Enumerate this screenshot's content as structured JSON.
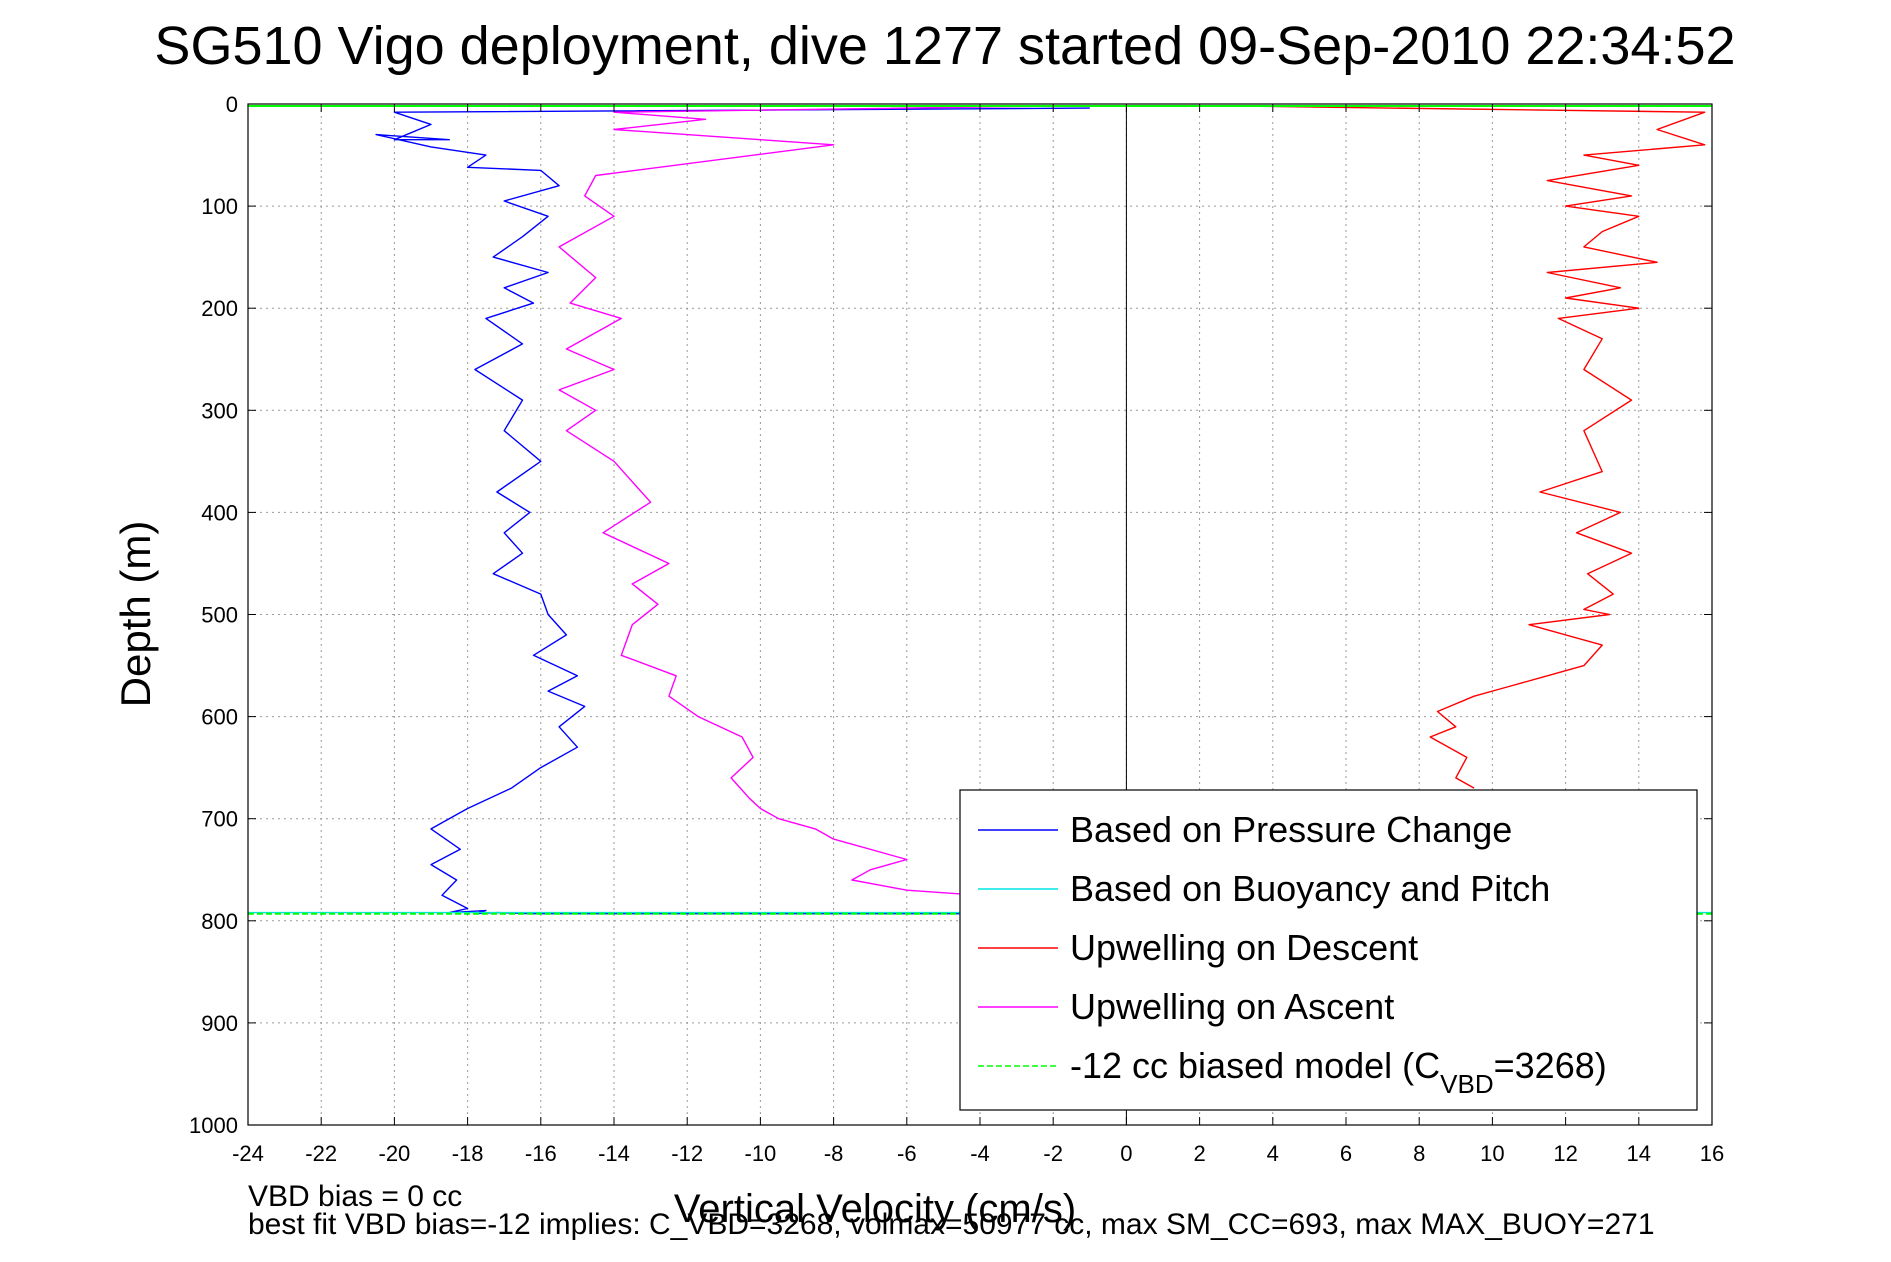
{
  "chart_data": {
    "type": "line",
    "title": "SG510 Vigo deployment, dive 1277 started 09-Sep-2010 22:34:52",
    "xlabel": "Vertical Velocity (cm/s)",
    "ylabel": "Depth (m)",
    "xlim": [
      -24,
      16
    ],
    "ylim": [
      0,
      1000
    ],
    "y_reversed": true,
    "grid": true,
    "legend_position": "lower-right",
    "x_ticks": [
      "-24",
      "-22",
      "-20",
      "-18",
      "-16",
      "-14",
      "-12",
      "-10",
      "-8",
      "-6",
      "-4",
      "-2",
      "0",
      "2",
      "4",
      "6",
      "8",
      "10",
      "12",
      "14",
      "16"
    ],
    "y_ticks": [
      "0",
      "100",
      "200",
      "300",
      "400",
      "500",
      "600",
      "700",
      "800",
      "900",
      "1000"
    ],
    "series": [
      {
        "name": "Based on Pressure Change",
        "color": "#0000ff",
        "x": [
          -1,
          -20,
          -19,
          -20,
          -18.5,
          -20.5,
          -19,
          -17.5,
          -18,
          -16,
          -15.5,
          -17,
          -15.8,
          -16.5,
          -17.3,
          -15.8,
          -17,
          -16.2,
          -17.5,
          -16.5,
          -17.8,
          -16.5,
          -17,
          -16,
          -17.2,
          -16.3,
          -17,
          -16.5,
          -17.3,
          -16,
          -15.8,
          -15.3,
          -16.2,
          -15,
          -15.8,
          -14.8,
          -15.5,
          -15,
          -16,
          -16.8,
          -18,
          -19,
          -18.2,
          -19,
          -18.3,
          -18.7,
          -18,
          -18.5,
          -17.5,
          -17.8,
          -17.2,
          -16.3,
          -15.8,
          -14.8,
          -6,
          0
        ],
        "y": [
          4,
          8,
          20,
          35,
          35,
          30,
          42,
          50,
          62,
          65,
          80,
          95,
          110,
          130,
          150,
          165,
          180,
          195,
          210,
          235,
          260,
          290,
          320,
          350,
          380,
          400,
          420,
          440,
          460,
          480,
          500,
          520,
          540,
          560,
          575,
          590,
          610,
          630,
          650,
          670,
          690,
          710,
          730,
          745,
          760,
          775,
          788,
          792,
          790,
          793,
          792,
          793,
          793,
          793,
          793,
          793
        ]
      },
      {
        "name": "Based on Buoyancy and Pitch",
        "color": "#00e5e5",
        "x": [
          -24,
          16
        ],
        "y": [
          792,
          792
        ]
      },
      {
        "name": "Upwelling on Descent",
        "color": "#ff0000",
        "x": [
          3,
          15.8,
          14.5,
          15.8,
          12.5,
          14,
          11.5,
          13.8,
          12,
          14,
          13,
          12.5,
          14.5,
          11.5,
          13.5,
          12,
          14,
          11.8,
          13,
          12.5,
          13.8,
          12.5,
          13,
          11.3,
          13.5,
          12.3,
          13.8,
          12.6,
          13.3,
          12.5,
          13.2,
          11,
          13,
          12.5,
          11.5,
          10.5,
          9.5,
          8.5,
          9,
          8.3,
          9.3,
          9,
          9.5
        ],
        "y": [
          2,
          8,
          25,
          40,
          50,
          60,
          75,
          90,
          100,
          110,
          125,
          140,
          155,
          165,
          180,
          190,
          200,
          210,
          230,
          260,
          290,
          320,
          360,
          380,
          400,
          420,
          440,
          460,
          480,
          495,
          500,
          510,
          530,
          550,
          560,
          570,
          580,
          595,
          610,
          620,
          640,
          660,
          670
        ]
      },
      {
        "name": "Upwelling on Ascent",
        "color": "#ff00ff",
        "x": [
          -2,
          -14,
          -11.5,
          -14,
          -10,
          -8,
          -14.5,
          -14.8,
          -14,
          -15.5,
          -14.5,
          -15.2,
          -13.8,
          -15.3,
          -14,
          -15.5,
          -14.5,
          -15.3,
          -14,
          -13.5,
          -13,
          -14.3,
          -12.5,
          -13.5,
          -12.8,
          -13.5,
          -13.8,
          -12.3,
          -12.5,
          -11.7,
          -10.5,
          -10.2,
          -10.8,
          -10.3,
          -10,
          -9.5,
          -8.5,
          -8,
          -6,
          -7,
          -7.5,
          -6,
          -4
        ],
        "y": [
          2,
          8,
          15,
          25,
          35,
          40,
          70,
          90,
          110,
          140,
          170,
          195,
          210,
          240,
          260,
          280,
          300,
          320,
          350,
          370,
          390,
          420,
          450,
          470,
          490,
          510,
          540,
          560,
          580,
          600,
          620,
          640,
          660,
          680,
          690,
          700,
          710,
          720,
          740,
          750,
          760,
          770,
          775
        ]
      }
    ],
    "legend": [
      {
        "label": "Based on Pressure Change",
        "color": "#0000ff",
        "style": "solid"
      },
      {
        "label": "Based on Buoyancy and Pitch",
        "color": "#00e5e5",
        "style": "solid"
      },
      {
        "label": "Upwelling on Descent",
        "color": "#ff0000",
        "style": "solid"
      },
      {
        "label": "Upwelling on Ascent",
        "color": "#ff00ff",
        "style": "solid"
      },
      {
        "label_prefix": "-12 cc biased model (C",
        "label_sub": "VBD",
        "label_suffix": "=3268)",
        "color": "#00ff00",
        "style": "dashed"
      }
    ],
    "model_line": {
      "color": "#00ff00",
      "x": [
        -24,
        16
      ],
      "y": [
        793,
        793
      ]
    }
  },
  "notes": {
    "vbd_bias": "VBD bias = 0 cc",
    "best_fit": "best fit VBD bias=-12 implies: C_VBD=3268, volmax=50977 cc, max SM_CC=693, max MAX_BUOY=271"
  }
}
